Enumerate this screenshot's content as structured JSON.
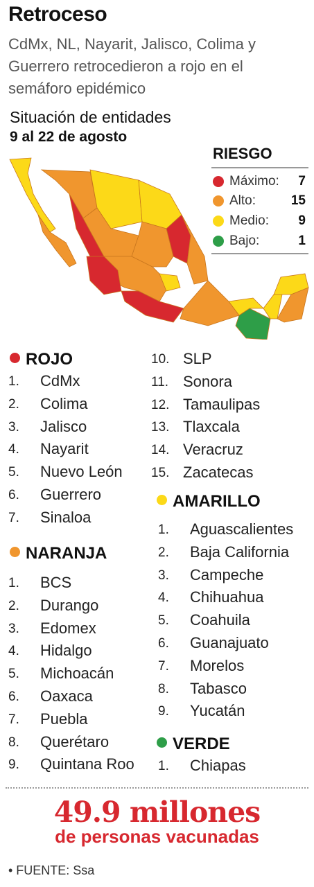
{
  "header": {
    "title": "Retroceso",
    "subtitle": "CdMx, NL, Nayarit, Jalisco, Colima y Guerrero retrocedieron a rojo en el semáforo epidémico"
  },
  "map": {
    "title": "Situación de entidades",
    "period": "9 al 22 de agosto"
  },
  "legend": {
    "title": "RIESGO",
    "items": [
      {
        "label": "Máximo:",
        "count": 7,
        "color": "#d7282f"
      },
      {
        "label": "Alto:",
        "count": 15,
        "color": "#f0962e"
      },
      {
        "label": "Medio:",
        "count": 9,
        "color": "#fcd918"
      },
      {
        "label": "Bajo:",
        "count": 1,
        "color": "#2e9e48"
      }
    ]
  },
  "lists": [
    {
      "title": "ROJO",
      "color": "#d7282f",
      "items": [
        {
          "number": "1.",
          "name": "CdMx"
        },
        {
          "number": "2.",
          "name": "Colima"
        },
        {
          "number": "3.",
          "name": "Jalisco"
        },
        {
          "number": "4.",
          "name": "Nayarit"
        },
        {
          "number": "5.",
          "name": "Nuevo León"
        },
        {
          "number": "6.",
          "name": "Guerrero"
        },
        {
          "number": "7.",
          "name": "Sinaloa"
        }
      ]
    },
    {
      "title": "NARANJA",
      "color": "#f0962e",
      "items": [
        {
          "number": "1.",
          "name": "BCS"
        },
        {
          "number": "2.",
          "name": "Durango"
        },
        {
          "number": "3.",
          "name": "Edomex"
        },
        {
          "number": "4.",
          "name": "Hidalgo"
        },
        {
          "number": "5.",
          "name": "Michoacán"
        },
        {
          "number": "6.",
          "name": "Oaxaca"
        },
        {
          "number": "7.",
          "name": "Puebla"
        },
        {
          "number": "8.",
          "name": "Querétaro"
        },
        {
          "number": "9.",
          "name": "Quintana Roo"
        },
        {
          "number": "10.",
          "name": "SLP"
        },
        {
          "number": "11.",
          "name": "Sonora"
        },
        {
          "number": "12.",
          "name": "Tamaulipas"
        },
        {
          "number": "13.",
          "name": "Tlaxcala"
        },
        {
          "number": "14.",
          "name": "Veracruz"
        },
        {
          "number": "15.",
          "name": "Zacatecas"
        }
      ]
    },
    {
      "title": "AMARILLO",
      "color": "#fcd918",
      "items": [
        {
          "number": "1.",
          "name": "Aguascalientes"
        },
        {
          "number": "2.",
          "name": "Baja California"
        },
        {
          "number": "3.",
          "name": "Campeche"
        },
        {
          "number": "4.",
          "name": "Chihuahua"
        },
        {
          "number": "5.",
          "name": "Coahuila"
        },
        {
          "number": "6.",
          "name": "Guanajuato"
        },
        {
          "number": "7.",
          "name": "Morelos"
        },
        {
          "number": "8.",
          "name": "Tabasco"
        },
        {
          "number": "9.",
          "name": "Yucatán"
        }
      ]
    },
    {
      "title": "VERDE",
      "color": "#2e9e48",
      "items": [
        {
          "number": "1.",
          "name": "Chiapas"
        }
      ]
    }
  ],
  "footer": {
    "headline": "49.9 millones",
    "subline": "de personas vacunadas",
    "source": "• FUENTE: Ssa"
  }
}
